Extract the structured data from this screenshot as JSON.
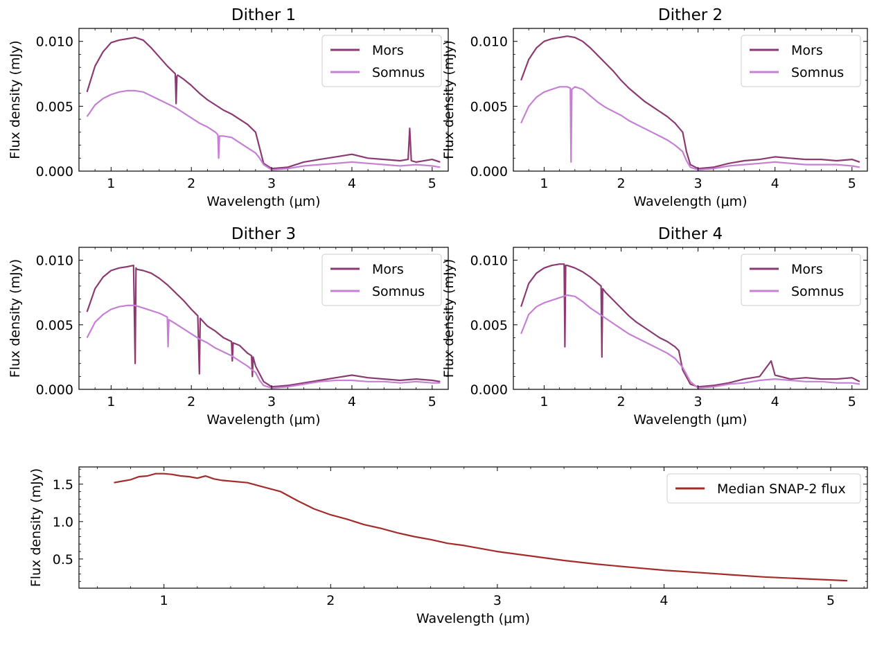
{
  "colors": {
    "mors": "#8b3a71",
    "somnus": "#c57fd3",
    "median": "#a52a2a"
  },
  "chart_data": [
    {
      "type": "line",
      "title": "Dither 1",
      "xlabel": "Wavelength (μm)",
      "ylabel": "Flux density (mJy)",
      "xlim": [
        0.6,
        5.2
      ],
      "ylim": [
        0.0,
        0.011
      ],
      "xticks": [
        1,
        2,
        3,
        4,
        5
      ],
      "yticks": [
        0.0,
        0.005,
        0.01
      ],
      "ytick_labels": [
        "0.000",
        "0.005",
        "0.010"
      ],
      "legend_position": "top-right",
      "series": [
        {
          "name": "Mors",
          "color_key": "mors",
          "x": [
            0.7,
            0.8,
            0.9,
            1.0,
            1.1,
            1.2,
            1.3,
            1.4,
            1.5,
            1.6,
            1.7,
            1.8,
            1.81,
            1.82,
            1.83,
            1.9,
            2.0,
            2.1,
            2.2,
            2.3,
            2.4,
            2.5,
            2.6,
            2.7,
            2.8,
            2.85,
            2.9,
            3.0,
            3.2,
            3.4,
            3.6,
            3.8,
            4.0,
            4.2,
            4.4,
            4.6,
            4.7,
            4.72,
            4.74,
            4.8,
            5.0,
            5.1
          ],
          "y": [
            0.0061,
            0.0081,
            0.0092,
            0.0099,
            0.0101,
            0.0102,
            0.0103,
            0.0101,
            0.0095,
            0.0088,
            0.0081,
            0.0075,
            0.0052,
            0.0073,
            0.0074,
            0.0071,
            0.0066,
            0.006,
            0.0055,
            0.0051,
            0.0047,
            0.0044,
            0.004,
            0.0036,
            0.003,
            0.0018,
            0.0006,
            0.0002,
            0.0003,
            0.0007,
            0.0009,
            0.0011,
            0.0013,
            0.001,
            0.0009,
            0.0008,
            0.0009,
            0.0033,
            0.0008,
            0.0007,
            0.0009,
            0.0007
          ]
        },
        {
          "name": "Somnus",
          "color_key": "somnus",
          "x": [
            0.7,
            0.8,
            0.9,
            1.0,
            1.1,
            1.2,
            1.3,
            1.4,
            1.5,
            1.6,
            1.7,
            1.8,
            1.9,
            2.0,
            2.1,
            2.2,
            2.3,
            2.33,
            2.34,
            2.35,
            2.4,
            2.5,
            2.6,
            2.7,
            2.8,
            2.85,
            2.9,
            3.0,
            3.2,
            3.4,
            3.6,
            3.8,
            4.0,
            4.2,
            4.4,
            4.6,
            4.8,
            5.0,
            5.1
          ],
          "y": [
            0.0042,
            0.0051,
            0.0056,
            0.0059,
            0.0061,
            0.0062,
            0.0062,
            0.0061,
            0.0058,
            0.0055,
            0.0052,
            0.0049,
            0.0045,
            0.0041,
            0.0037,
            0.0034,
            0.003,
            0.0028,
            0.001,
            0.0027,
            0.0027,
            0.0026,
            0.0022,
            0.0018,
            0.0014,
            0.001,
            0.0005,
            0.0001,
            0.0002,
            0.0004,
            0.0005,
            0.0006,
            0.0007,
            0.0006,
            0.0005,
            0.0004,
            0.0005,
            0.0004,
            0.0003
          ]
        }
      ]
    },
    {
      "type": "line",
      "title": "Dither 2",
      "xlabel": "Wavelength (μm)",
      "ylabel": "Flux density (mJy)",
      "xlim": [
        0.6,
        5.2
      ],
      "ylim": [
        0.0,
        0.011
      ],
      "xticks": [
        1,
        2,
        3,
        4,
        5
      ],
      "yticks": [
        0.0,
        0.005,
        0.01
      ],
      "ytick_labels": [
        "0.000",
        "0.005",
        "0.010"
      ],
      "legend_position": "top-right",
      "series": [
        {
          "name": "Mors",
          "color_key": "mors",
          "x": [
            0.7,
            0.8,
            0.9,
            1.0,
            1.1,
            1.2,
            1.3,
            1.4,
            1.5,
            1.6,
            1.7,
            1.8,
            1.9,
            2.0,
            2.1,
            2.2,
            2.3,
            2.4,
            2.5,
            2.6,
            2.7,
            2.8,
            2.85,
            2.9,
            3.0,
            3.2,
            3.4,
            3.6,
            3.8,
            4.0,
            4.2,
            4.4,
            4.6,
            4.8,
            5.0,
            5.1
          ],
          "y": [
            0.007,
            0.0086,
            0.0095,
            0.01,
            0.0102,
            0.0103,
            0.0104,
            0.0103,
            0.01,
            0.0095,
            0.0089,
            0.0083,
            0.0077,
            0.007,
            0.0064,
            0.0059,
            0.0054,
            0.005,
            0.0046,
            0.0042,
            0.0037,
            0.003,
            0.0015,
            0.0005,
            0.0002,
            0.0003,
            0.0006,
            0.0008,
            0.0009,
            0.0011,
            0.001,
            0.0009,
            0.0009,
            0.0008,
            0.0009,
            0.0007
          ]
        },
        {
          "name": "Somnus",
          "color_key": "somnus",
          "x": [
            0.7,
            0.8,
            0.9,
            1.0,
            1.1,
            1.2,
            1.3,
            1.34,
            1.35,
            1.36,
            1.4,
            1.5,
            1.6,
            1.7,
            1.8,
            1.9,
            2.0,
            2.1,
            2.2,
            2.3,
            2.4,
            2.5,
            2.6,
            2.7,
            2.8,
            2.85,
            2.9,
            3.0,
            3.2,
            3.4,
            3.6,
            3.8,
            4.0,
            4.2,
            4.4,
            4.6,
            4.8,
            5.0,
            5.1
          ],
          "y": [
            0.0037,
            0.005,
            0.0057,
            0.0061,
            0.0063,
            0.0065,
            0.0065,
            0.0064,
            0.0007,
            0.0063,
            0.0065,
            0.0063,
            0.0058,
            0.0053,
            0.0049,
            0.0046,
            0.0043,
            0.0039,
            0.0036,
            0.0033,
            0.003,
            0.0027,
            0.0024,
            0.002,
            0.0015,
            0.0008,
            0.0003,
            0.0001,
            0.0002,
            0.0004,
            0.0005,
            0.0006,
            0.0007,
            0.0006,
            0.0005,
            0.0005,
            0.0005,
            0.0004,
            0.0003
          ]
        }
      ]
    },
    {
      "type": "line",
      "title": "Dither 3",
      "xlabel": "Wavelength (μm)",
      "ylabel": "Flux density (mJy)",
      "xlim": [
        0.6,
        5.2
      ],
      "ylim": [
        0.0,
        0.011
      ],
      "xticks": [
        1,
        2,
        3,
        4,
        5
      ],
      "yticks": [
        0.0,
        0.005,
        0.01
      ],
      "ytick_labels": [
        "0.000",
        "0.005",
        "0.010"
      ],
      "legend_position": "top-right",
      "series": [
        {
          "name": "Mors",
          "color_key": "mors",
          "x": [
            0.7,
            0.8,
            0.9,
            1.0,
            1.1,
            1.2,
            1.28,
            1.3,
            1.31,
            1.32,
            1.4,
            1.5,
            1.6,
            1.7,
            1.8,
            1.9,
            2.0,
            2.08,
            2.1,
            2.11,
            2.2,
            2.3,
            2.4,
            2.5,
            2.51,
            2.52,
            2.6,
            2.7,
            2.75,
            2.76,
            2.77,
            2.8,
            2.9,
            3.0,
            3.2,
            3.4,
            3.6,
            3.8,
            4.0,
            4.2,
            4.4,
            4.6,
            4.8,
            5.0,
            5.1
          ],
          "y": [
            0.006,
            0.0078,
            0.0087,
            0.0092,
            0.0094,
            0.0095,
            0.0096,
            0.002,
            0.0094,
            0.0093,
            0.0092,
            0.009,
            0.0086,
            0.0081,
            0.0075,
            0.0069,
            0.0062,
            0.0057,
            0.0012,
            0.0055,
            0.0049,
            0.0045,
            0.004,
            0.0037,
            0.0022,
            0.0036,
            0.0034,
            0.0028,
            0.0026,
            0.001,
            0.0025,
            0.0018,
            0.0006,
            0.0002,
            0.0003,
            0.0005,
            0.0007,
            0.0009,
            0.0011,
            0.0009,
            0.0008,
            0.0007,
            0.0008,
            0.0007,
            0.0006
          ]
        },
        {
          "name": "Somnus",
          "color_key": "somnus",
          "x": [
            0.7,
            0.8,
            0.9,
            1.0,
            1.1,
            1.2,
            1.3,
            1.4,
            1.5,
            1.6,
            1.7,
            1.71,
            1.72,
            1.8,
            1.9,
            2.0,
            2.1,
            2.2,
            2.3,
            2.4,
            2.5,
            2.6,
            2.7,
            2.8,
            2.85,
            2.9,
            3.0,
            3.2,
            3.4,
            3.6,
            3.8,
            4.0,
            4.2,
            4.4,
            4.6,
            4.8,
            5.0,
            5.1
          ],
          "y": [
            0.004,
            0.0052,
            0.0058,
            0.0062,
            0.0064,
            0.0065,
            0.0065,
            0.0063,
            0.0061,
            0.0059,
            0.0056,
            0.0033,
            0.0054,
            0.0051,
            0.0047,
            0.0043,
            0.0039,
            0.0036,
            0.0032,
            0.0029,
            0.0026,
            0.0022,
            0.0018,
            0.0013,
            0.0007,
            0.0003,
            0.0001,
            0.0002,
            0.0004,
            0.0006,
            0.0007,
            0.0007,
            0.0006,
            0.0006,
            0.0005,
            0.0006,
            0.0005,
            0.0005
          ]
        }
      ]
    },
    {
      "type": "line",
      "title": "Dither 4",
      "xlabel": "Wavelength (μm)",
      "ylabel": "Flux density (mJy)",
      "xlim": [
        0.6,
        5.2
      ],
      "ylim": [
        0.0,
        0.011
      ],
      "xticks": [
        1,
        2,
        3,
        4,
        5
      ],
      "yticks": [
        0.0,
        0.005,
        0.01
      ],
      "ytick_labels": [
        "0.000",
        "0.005",
        "0.010"
      ],
      "legend_position": "top-right",
      "series": [
        {
          "name": "Mors",
          "color_key": "mors",
          "x": [
            0.7,
            0.8,
            0.9,
            1.0,
            1.1,
            1.2,
            1.26,
            1.27,
            1.28,
            1.3,
            1.4,
            1.5,
            1.6,
            1.7,
            1.74,
            1.75,
            1.76,
            1.8,
            1.9,
            2.0,
            2.1,
            2.2,
            2.3,
            2.4,
            2.5,
            2.6,
            2.7,
            2.75,
            2.8,
            2.9,
            3.0,
            3.2,
            3.4,
            3.6,
            3.8,
            3.95,
            4.0,
            4.2,
            4.4,
            4.6,
            4.8,
            5.0,
            5.1
          ],
          "y": [
            0.0064,
            0.0082,
            0.009,
            0.0094,
            0.0096,
            0.0097,
            0.0097,
            0.0033,
            0.0096,
            0.0096,
            0.0094,
            0.0091,
            0.0087,
            0.0082,
            0.008,
            0.0025,
            0.0078,
            0.0075,
            0.0069,
            0.0063,
            0.0057,
            0.0052,
            0.0048,
            0.0044,
            0.004,
            0.0037,
            0.0033,
            0.003,
            0.0015,
            0.0004,
            0.0002,
            0.0003,
            0.0005,
            0.0008,
            0.001,
            0.0022,
            0.0011,
            0.0008,
            0.0009,
            0.0008,
            0.0008,
            0.0009,
            0.0006
          ]
        },
        {
          "name": "Somnus",
          "color_key": "somnus",
          "x": [
            0.7,
            0.8,
            0.9,
            1.0,
            1.1,
            1.2,
            1.3,
            1.4,
            1.5,
            1.6,
            1.7,
            1.8,
            1.9,
            2.0,
            2.1,
            2.2,
            2.3,
            2.4,
            2.5,
            2.6,
            2.7,
            2.8,
            2.9,
            3.0,
            3.2,
            3.4,
            3.6,
            3.8,
            4.0,
            4.2,
            4.4,
            4.6,
            4.8,
            5.0,
            5.1
          ],
          "y": [
            0.0043,
            0.0058,
            0.0064,
            0.0067,
            0.0069,
            0.0071,
            0.0073,
            0.0072,
            0.0068,
            0.0063,
            0.0059,
            0.0055,
            0.0051,
            0.0047,
            0.0043,
            0.004,
            0.0037,
            0.0034,
            0.0031,
            0.0028,
            0.0024,
            0.0017,
            0.0006,
            0.0001,
            0.0002,
            0.0004,
            0.0005,
            0.0007,
            0.0008,
            0.0007,
            0.0006,
            0.0006,
            0.0005,
            0.0005,
            0.0004
          ]
        }
      ]
    },
    {
      "type": "line",
      "title": "",
      "xlabel": "Wavelength (μm)",
      "ylabel": "Flux density (mJy)",
      "xlim": [
        0.49,
        5.22
      ],
      "ylim": [
        0.11,
        1.73
      ],
      "xticks": [
        1,
        2,
        3,
        4,
        5
      ],
      "yticks": [
        0.5,
        1.0,
        1.5
      ],
      "ytick_labels": [
        "0.5",
        "1.0",
        "1.5"
      ],
      "legend_position": "top-right",
      "series": [
        {
          "name": "Median SNAP-2 flux",
          "color_key": "median",
          "x": [
            0.7,
            0.75,
            0.8,
            0.85,
            0.9,
            0.95,
            1.0,
            1.05,
            1.1,
            1.15,
            1.2,
            1.25,
            1.3,
            1.35,
            1.4,
            1.5,
            1.6,
            1.7,
            1.8,
            1.9,
            2.0,
            2.1,
            2.2,
            2.3,
            2.4,
            2.5,
            2.6,
            2.7,
            2.8,
            3.0,
            3.2,
            3.4,
            3.6,
            3.8,
            4.0,
            4.2,
            4.4,
            4.6,
            4.8,
            5.0,
            5.1
          ],
          "y": [
            1.52,
            1.54,
            1.56,
            1.6,
            1.61,
            1.64,
            1.64,
            1.63,
            1.61,
            1.6,
            1.58,
            1.61,
            1.57,
            1.55,
            1.54,
            1.52,
            1.46,
            1.4,
            1.28,
            1.17,
            1.09,
            1.03,
            0.96,
            0.91,
            0.85,
            0.8,
            0.76,
            0.71,
            0.68,
            0.6,
            0.54,
            0.48,
            0.43,
            0.39,
            0.35,
            0.32,
            0.29,
            0.26,
            0.24,
            0.22,
            0.21
          ]
        }
      ]
    }
  ]
}
